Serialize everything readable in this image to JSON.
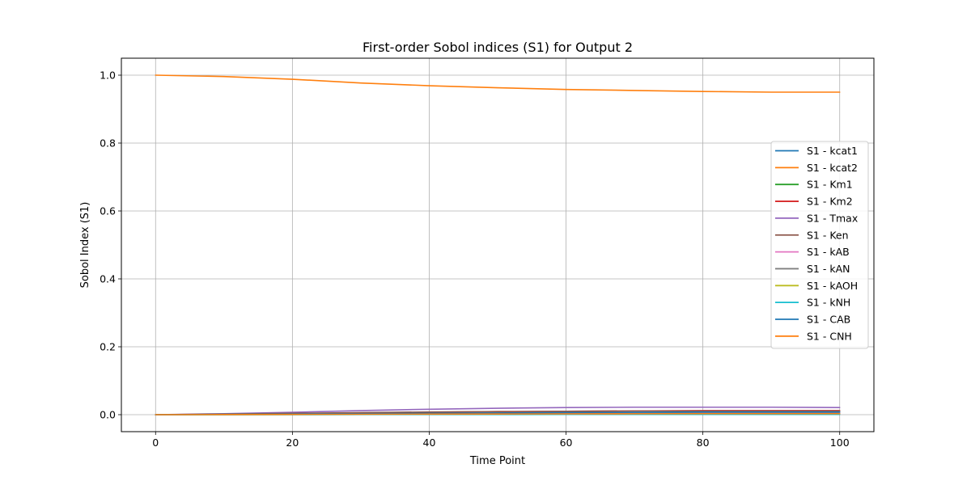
{
  "chart_data": {
    "type": "line",
    "title": "First-order Sobol indices (S1) for Output 2",
    "xlabel": "Time Point",
    "ylabel": "Sobol Index (S1)",
    "xlim": [
      -5,
      105
    ],
    "ylim": [
      -0.05,
      1.05
    ],
    "xticks": [
      0,
      20,
      40,
      60,
      80,
      100
    ],
    "yticks": [
      0.0,
      0.2,
      0.4,
      0.6,
      0.8,
      1.0
    ],
    "xtick_labels": [
      "0",
      "20",
      "40",
      "60",
      "80",
      "100"
    ],
    "ytick_labels": [
      "0.0",
      "0.2",
      "0.4",
      "0.6",
      "0.8",
      "1.0"
    ],
    "grid": true,
    "legend_position": "center-right",
    "x": [
      0,
      10,
      20,
      30,
      40,
      50,
      60,
      70,
      80,
      90,
      100
    ],
    "series": [
      {
        "name": "S1 - kcat1",
        "color": "#1f77b4",
        "values": [
          0,
          0.0005,
          0.001,
          0.0015,
          0.002,
          0.0025,
          0.003,
          0.0033,
          0.0036,
          0.0038,
          0.004
        ]
      },
      {
        "name": "S1 - kcat2",
        "color": "#ff7f0e",
        "values": [
          1.0,
          0.996,
          0.988,
          0.977,
          0.969,
          0.963,
          0.958,
          0.955,
          0.952,
          0.95,
          0.95
        ]
      },
      {
        "name": "S1 - Km1",
        "color": "#2ca02c",
        "values": [
          0,
          0.0002,
          0.0004,
          0.0006,
          0.0008,
          0.001,
          0.0012,
          0.0013,
          0.0014,
          0.0015,
          0.0015
        ]
      },
      {
        "name": "S1 - Km2",
        "color": "#d62728",
        "values": [
          0,
          0.001,
          0.003,
          0.005,
          0.007,
          0.009,
          0.01,
          0.011,
          0.012,
          0.012,
          0.012
        ]
      },
      {
        "name": "S1 - Tmax",
        "color": "#9467bd",
        "values": [
          0,
          0.003,
          0.007,
          0.012,
          0.016,
          0.019,
          0.021,
          0.022,
          0.022,
          0.022,
          0.021
        ]
      },
      {
        "name": "S1 - Ken",
        "color": "#8c564b",
        "values": [
          0,
          0.002,
          0.004,
          0.006,
          0.008,
          0.009,
          0.01,
          0.011,
          0.011,
          0.011,
          0.011
        ]
      },
      {
        "name": "S1 - kAB",
        "color": "#e377c2",
        "values": [
          0,
          0.0005,
          0.001,
          0.002,
          0.003,
          0.0035,
          0.004,
          0.0045,
          0.005,
          0.005,
          0.005
        ]
      },
      {
        "name": "S1 - kAN",
        "color": "#7f7f7f",
        "values": [
          0,
          0.001,
          0.002,
          0.003,
          0.004,
          0.005,
          0.006,
          0.0065,
          0.007,
          0.007,
          0.007
        ]
      },
      {
        "name": "S1 - kAOH",
        "color": "#bcbd22",
        "values": [
          0,
          0.0003,
          0.0006,
          0.001,
          0.0013,
          0.0016,
          0.0018,
          0.002,
          0.0021,
          0.0022,
          0.0022
        ]
      },
      {
        "name": "S1 - kNH",
        "color": "#17becf",
        "values": [
          0,
          0.0001,
          0.0002,
          0.0003,
          0.0004,
          0.0005,
          0.0006,
          0.0006,
          0.0007,
          0.0007,
          0.0007
        ]
      },
      {
        "name": "S1 - CAB",
        "color": "#1f77b4",
        "values": [
          0,
          0.001,
          0.002,
          0.003,
          0.004,
          0.005,
          0.006,
          0.007,
          0.008,
          0.008,
          0.008
        ]
      },
      {
        "name": "S1 - CNH",
        "color": "#ff7f0e",
        "values": [
          0,
          0.0004,
          0.0008,
          0.0012,
          0.0016,
          0.002,
          0.0024,
          0.0027,
          0.003,
          0.003,
          0.003
        ]
      }
    ]
  }
}
